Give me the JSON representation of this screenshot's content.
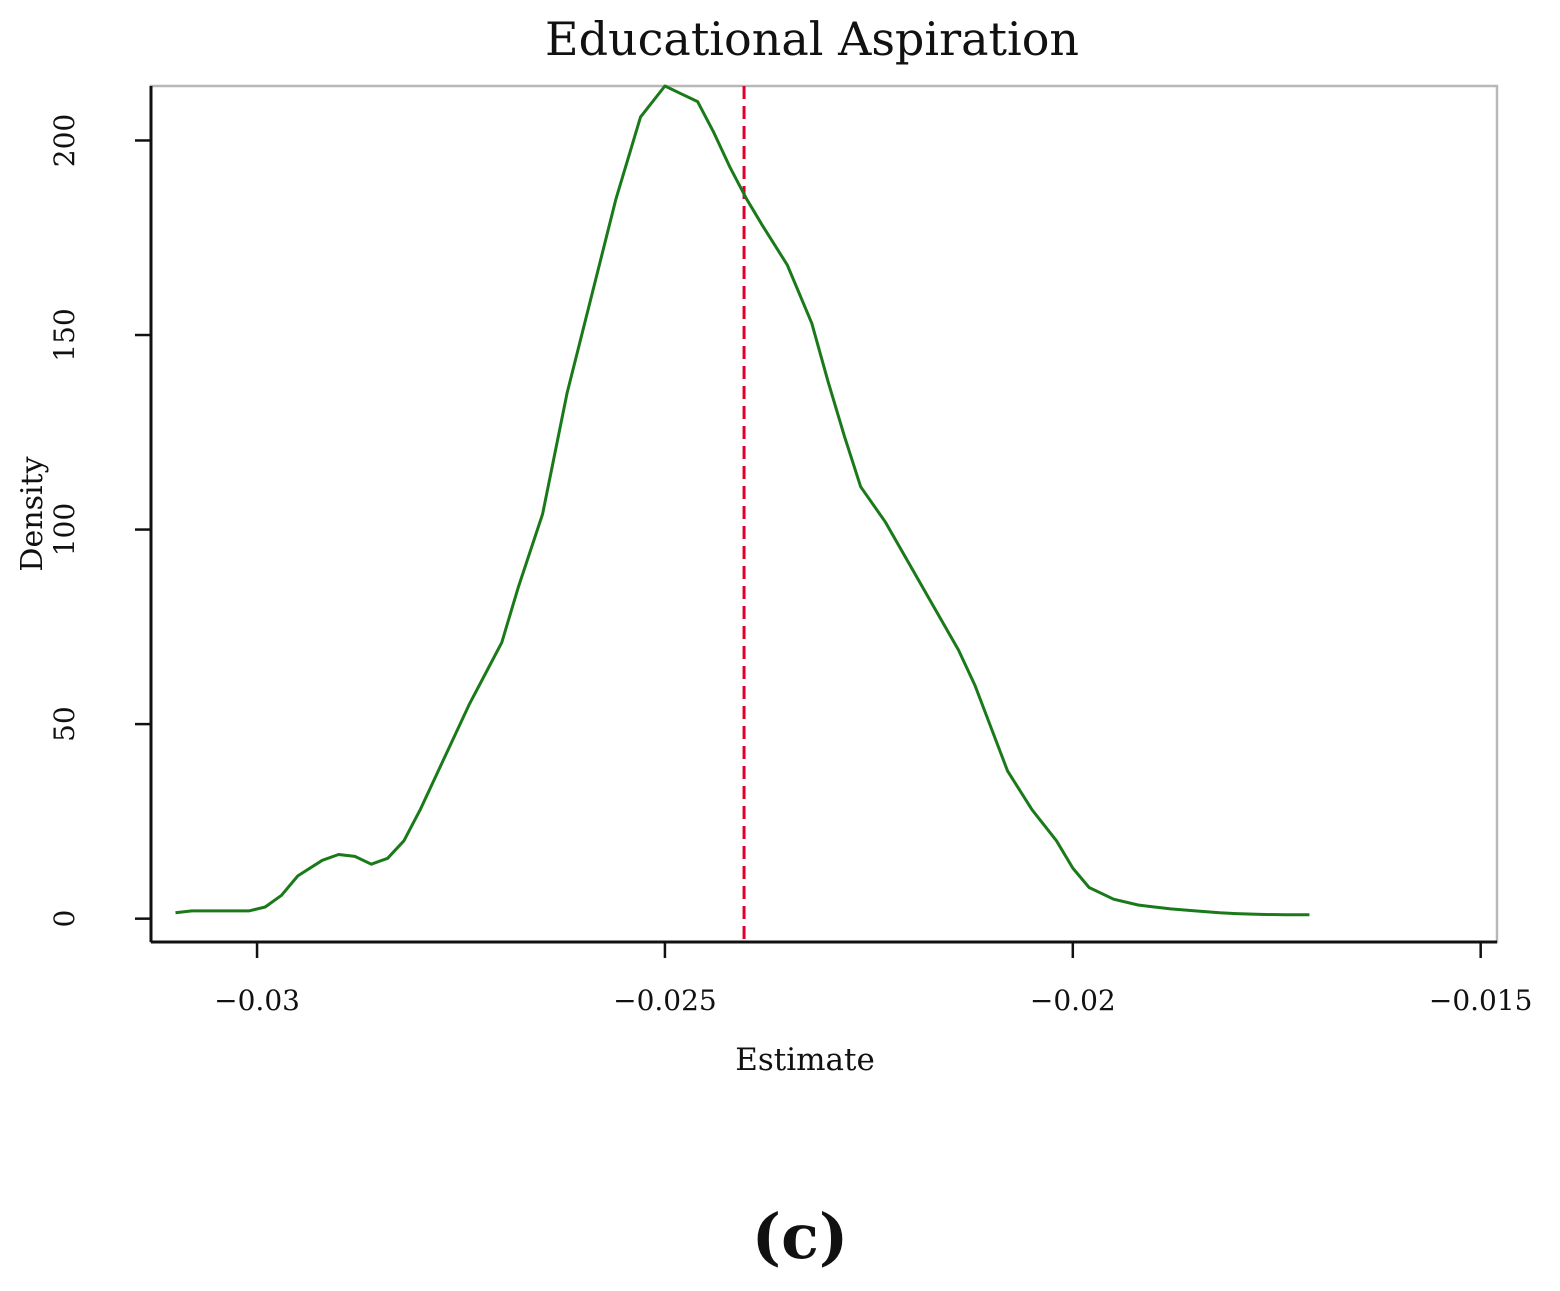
{
  "chart_data": {
    "type": "line",
    "title": "Educational Aspiration",
    "xlabel": "Estimate",
    "ylabel": "Density",
    "panel_label": "(c)",
    "xlim": [
      -0.0313,
      -0.0148
    ],
    "ylim": [
      -6,
      214
    ],
    "x_ticks": [
      {
        "value": -0.03,
        "label": "−0.03"
      },
      {
        "value": -0.025,
        "label": "−0.025"
      },
      {
        "value": -0.02,
        "label": "−0.02"
      },
      {
        "value": -0.015,
        "label": "−0.015"
      }
    ],
    "y_ticks": [
      {
        "value": 0,
        "label": "0"
      },
      {
        "value": 50,
        "label": "50"
      },
      {
        "value": 100,
        "label": "100"
      },
      {
        "value": 150,
        "label": "150"
      },
      {
        "value": 200,
        "label": "200"
      }
    ],
    "grid": false,
    "line_color": "#1a7a1a",
    "reference_line": {
      "x": -0.02403,
      "color": "#e0002a",
      "style": "dashed"
    },
    "series": [
      {
        "x": [
          -0.031,
          -0.0308,
          -0.0304,
          -0.0301,
          -0.0299,
          -0.0297,
          -0.0295,
          -0.0292,
          -0.029,
          -0.0288,
          -0.0286,
          -0.0284,
          -0.0282,
          -0.028,
          -0.0278,
          -0.0276,
          -0.0274,
          -0.0272,
          -0.027,
          -0.0268,
          -0.0265,
          -0.0262,
          -0.0259,
          -0.0256,
          -0.0253,
          -0.025,
          -0.0248,
          -0.0246,
          -0.0244,
          -0.0242,
          -0.024,
          -0.0238,
          -0.0235,
          -0.0232,
          -0.023,
          -0.0228,
          -0.0226,
          -0.0223,
          -0.022,
          -0.0217,
          -0.0214,
          -0.0212,
          -0.021,
          -0.0208,
          -0.0205,
          -0.0202,
          -0.02,
          -0.0198,
          -0.0195,
          -0.0192,
          -0.019,
          -0.0188,
          -0.0185,
          -0.0182,
          -0.018,
          -0.0177,
          -0.0174,
          -0.0171
        ],
        "y": [
          1.5,
          2.0,
          2.0,
          2.0,
          3.0,
          6.0,
          11.0,
          15.0,
          16.5,
          16.0,
          14.0,
          15.5,
          20.0,
          28.0,
          37.0,
          46.0,
          55.0,
          63.0,
          71.0,
          85.0,
          104.0,
          135.0,
          160.0,
          185.0,
          206.0,
          214.0,
          212.0,
          210.0,
          202.0,
          193.0,
          185.0,
          178.0,
          168.0,
          153.0,
          138.0,
          124.0,
          111.0,
          102.0,
          91.0,
          80.0,
          69.0,
          60.0,
          49.0,
          38.0,
          28.0,
          20.0,
          13.0,
          8.0,
          5.0,
          3.5,
          3.0,
          2.5,
          2.0,
          1.5,
          1.3,
          1.1,
          1.0,
          1.0
        ]
      }
    ]
  }
}
